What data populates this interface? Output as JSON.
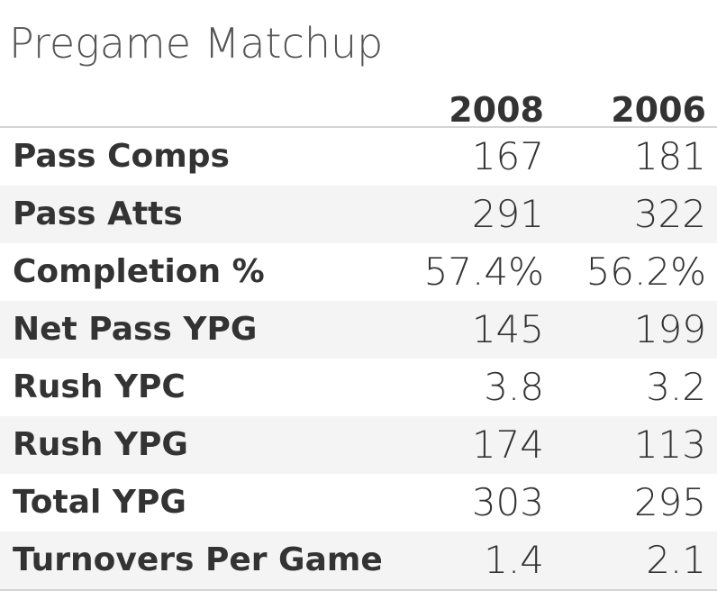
{
  "title": "Pregame Matchup",
  "columns": [
    "2008",
    "2006"
  ],
  "rows": [
    {
      "label": "Pass Comps",
      "values": [
        "167",
        "181"
      ]
    },
    {
      "label": "Pass Atts",
      "values": [
        "291",
        "322"
      ]
    },
    {
      "label": "Completion %",
      "values": [
        "57.4%",
        "56.2%"
      ]
    },
    {
      "label": "Net Pass YPG",
      "values": [
        "145",
        "199"
      ]
    },
    {
      "label": "Rush YPC",
      "values": [
        "3.8",
        "3.2"
      ]
    },
    {
      "label": "Rush YPG",
      "values": [
        "174",
        "113"
      ]
    },
    {
      "label": "Total YPG",
      "values": [
        "303",
        "295"
      ]
    },
    {
      "label": "Turnovers Per Game",
      "values": [
        "1.4",
        "2.1"
      ]
    }
  ],
  "colors": {
    "text": "#333333",
    "title": "#555555",
    "stripe": "#f4f4f4",
    "rule": "#d4d4d4"
  }
}
